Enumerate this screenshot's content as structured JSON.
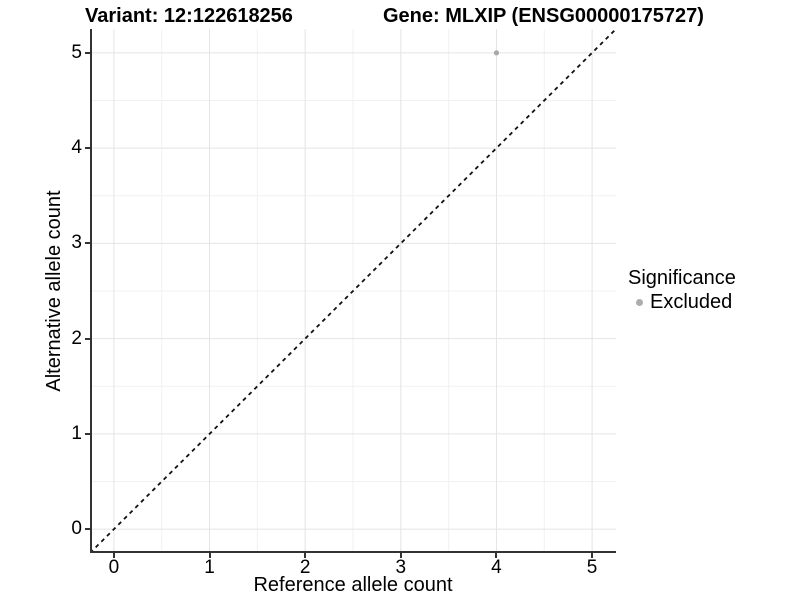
{
  "chart_data": {
    "type": "scatter",
    "title_left": "Variant: 12:122618256",
    "title_right": "Gene: MLXIP (ENSG00000175727)",
    "xlabel": "Reference allele count",
    "ylabel": "Alternative allele count",
    "xlim": [
      -0.25,
      5.25
    ],
    "ylim": [
      -0.25,
      5.25
    ],
    "xticks": [
      0,
      1,
      2,
      3,
      4,
      5
    ],
    "yticks": [
      0,
      1,
      2,
      3,
      4,
      5
    ],
    "minor_gridlines_x": [
      0.5,
      1.5,
      2.5,
      3.5,
      4.5
    ],
    "minor_gridlines_y": [
      0.5,
      1.5,
      2.5,
      3.5,
      4.5
    ],
    "grid": "major+minor",
    "reference_line": {
      "kind": "identity y=x",
      "style": "dashed",
      "color": "#111111",
      "dash": "4,4"
    },
    "series": [
      {
        "name": "Excluded",
        "color": "#a8a8a8",
        "points": [
          {
            "x": 4,
            "y": 5
          }
        ]
      }
    ],
    "legend": {
      "title": "Significance",
      "position": "right",
      "items": [
        {
          "label": "Excluded",
          "color": "#adadad"
        }
      ]
    },
    "colors": {
      "background": "#ffffff",
      "grid_major": "#e4e4e4",
      "grid_minor": "#f1f1f1",
      "axis_line": "#333333",
      "text": "#000000"
    }
  }
}
